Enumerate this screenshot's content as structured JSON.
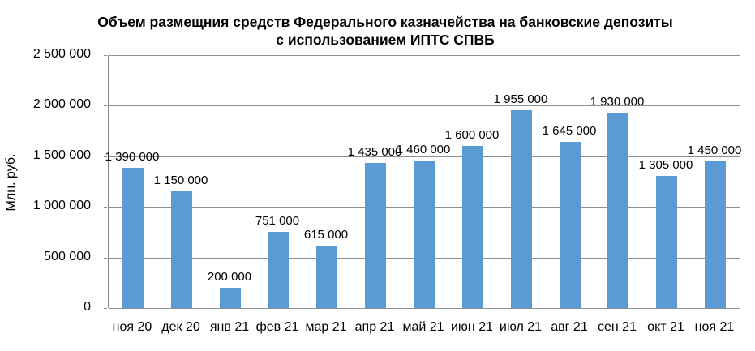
{
  "chart_data": {
    "type": "bar",
    "title": "Объем размещния средств Федерального казначейства на банковские депозиты с использованием ИПТС СПВБ",
    "ylabel": "Млн. руб.",
    "xlabel": "",
    "categories": [
      "ноя 20",
      "дек 20",
      "янв 21",
      "фев 21",
      "мар 21",
      "апр 21",
      "май 21",
      "июн 21",
      "июл 21",
      "авг 21",
      "сен 21",
      "окт 21",
      "ноя 21"
    ],
    "values": [
      1390000,
      1150000,
      200000,
      751000,
      615000,
      1435000,
      1460000,
      1600000,
      1955000,
      1645000,
      1930000,
      1305000,
      1450000
    ],
    "value_labels": [
      "1 390 000",
      "1 150 000",
      "200 000",
      "751 000",
      "615 000",
      "1 435 000",
      "1 460 000",
      "1 600 000",
      "1 955 000",
      "1 645 000",
      "1 930 000",
      "1 305 000",
      "1 450 000"
    ],
    "y_ticks": [
      "2 500 000",
      "2 000 000",
      "1 500 000",
      "1 000 000",
      "500 000",
      "0"
    ],
    "ylim": [
      0,
      2500000
    ],
    "grid": true,
    "legend": "none",
    "bar_color": "#5b9bd5",
    "gridline_color": "#909090",
    "axis_color": "#8c8c8c",
    "text_color": "#000000"
  }
}
